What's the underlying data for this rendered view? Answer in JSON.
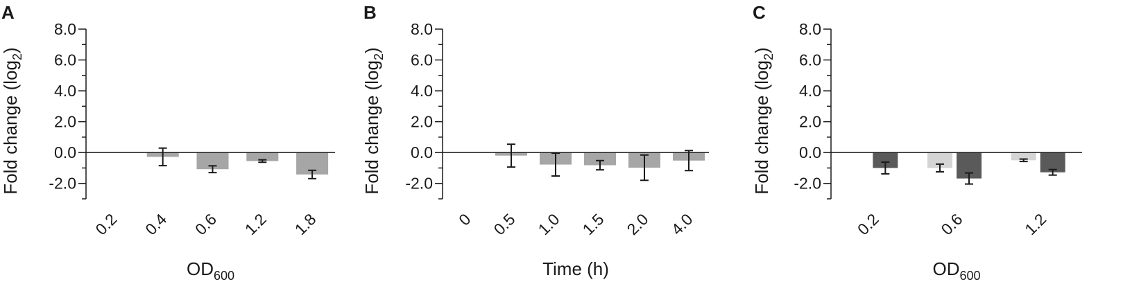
{
  "chart_data": [
    {
      "panel_letter": "A",
      "type": "bar",
      "categories": [
        "0.2",
        "0.4",
        "0.6",
        "1.2",
        "1.8"
      ],
      "series": [
        {
          "values": [
            null,
            -0.28,
            -1.08,
            -0.55,
            -1.42
          ],
          "errors": [
            null,
            0.57,
            0.22,
            0.08,
            0.27
          ],
          "color": "#a6a6a6"
        }
      ],
      "xlabel": "OD",
      "xlabel_sub": "600",
      "ylabel": "Fold change (log",
      "ylabel_sub": "2",
      "ylabel_tail": ")",
      "ylim": [
        -3,
        8
      ],
      "yticks": [
        -2,
        0,
        2,
        4,
        6,
        8
      ],
      "ytick_labels": [
        "-2.0",
        "0.0",
        "2.0",
        "4.0",
        "6.0",
        "8.0"
      ]
    },
    {
      "panel_letter": "B",
      "type": "bar",
      "categories": [
        "0",
        "0.5",
        "1.0",
        "1.5",
        "2.0",
        "4.0"
      ],
      "series": [
        {
          "values": [
            null,
            -0.2,
            -0.78,
            -0.82,
            -0.98,
            -0.52
          ],
          "errors": [
            null,
            0.74,
            0.74,
            0.3,
            0.82,
            0.65
          ],
          "color": "#a6a6a6"
        }
      ],
      "xlabel": "Time (h)",
      "ylabel": "Fold change (log",
      "ylabel_sub": "2",
      "ylabel_tail": ")",
      "ylim": [
        -3,
        8
      ],
      "yticks": [
        -2,
        0,
        2,
        4,
        6,
        8
      ],
      "ytick_labels": [
        "-2.0",
        "0.0",
        "2.0",
        "4.0",
        "6.0",
        "8.0"
      ]
    },
    {
      "panel_letter": "C",
      "type": "bar",
      "categories": [
        "0.2",
        "0.6",
        "1.2"
      ],
      "series": [
        {
          "values": [
            null,
            -1.0,
            -0.5
          ],
          "errors": [
            null,
            0.25,
            0.08
          ],
          "color": "#d4d4d4"
        },
        {
          "values": [
            -1.0,
            -1.68,
            -1.28
          ],
          "errors": [
            0.38,
            0.36,
            0.18
          ],
          "color": "#5a5a5a"
        }
      ],
      "xlabel": "OD",
      "xlabel_sub": "600",
      "ylabel": "Fold change (log",
      "ylabel_sub": "2",
      "ylabel_tail": ")",
      "ylim": [
        -3,
        8
      ],
      "yticks": [
        -2,
        0,
        2,
        4,
        6,
        8
      ],
      "ytick_labels": [
        "-2.0",
        "0.0",
        "2.0",
        "4.0",
        "6.0",
        "8.0"
      ]
    }
  ]
}
